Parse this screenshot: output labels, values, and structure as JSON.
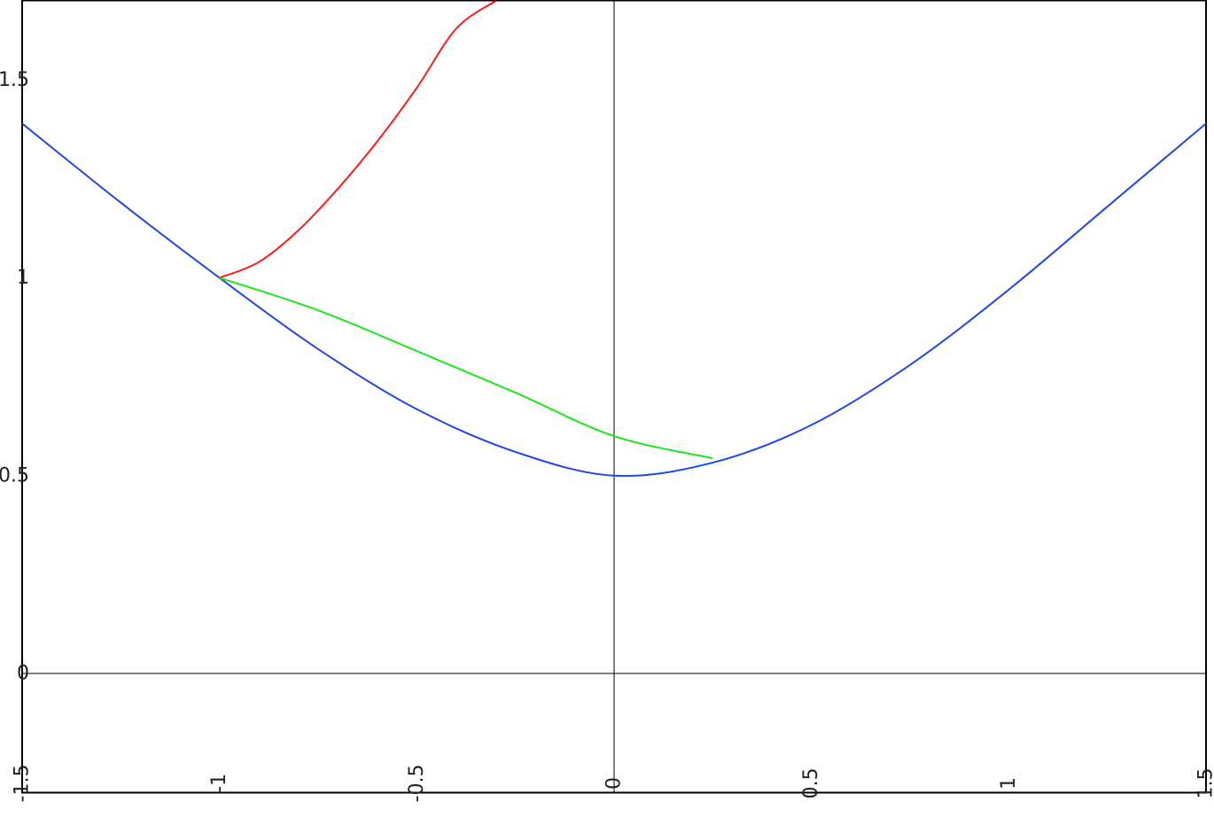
{
  "chart_data": {
    "type": "line",
    "title": "",
    "xlabel": "",
    "ylabel": "",
    "xlim": [
      -1.5,
      1.5
    ],
    "ylim": [
      -0.3,
      1.7
    ],
    "grid": false,
    "x_ticks": [
      {
        "value": -1.5,
        "label": "-1.5"
      },
      {
        "value": -1,
        "label": "-1"
      },
      {
        "value": -0.5,
        "label": "-0.5"
      },
      {
        "value": 0,
        "label": "0"
      },
      {
        "value": 0.5,
        "label": "0.5"
      },
      {
        "value": 1,
        "label": "1"
      },
      {
        "value": 1.5,
        "label": "1.5"
      }
    ],
    "y_ticks": [
      {
        "value": 0,
        "label": "0"
      },
      {
        "value": 0.5,
        "label": "0.5"
      },
      {
        "value": 1,
        "label": "1"
      },
      {
        "value": 1.5,
        "label": "1.5"
      }
    ],
    "series": [
      {
        "color": "#2148e6",
        "x": [
          -1.5,
          -1.25,
          -1.0,
          -0.75,
          -0.5,
          -0.25,
          0.0,
          0.25,
          0.5,
          0.75,
          1.0,
          1.25,
          1.5
        ],
        "y": [
          1.39,
          1.19,
          1.0,
          0.82,
          0.668,
          0.56,
          0.5,
          0.533,
          0.628,
          0.78,
          0.97,
          1.18,
          1.39
        ]
      },
      {
        "color": "#ff1a1a",
        "x": [
          -1.0,
          -0.9,
          -0.8,
          -0.7,
          -0.6,
          -0.5,
          -0.4,
          -0.3
        ],
        "y": [
          1.0,
          1.04,
          1.12,
          1.225,
          1.345,
          1.48,
          1.63,
          1.7
        ]
      },
      {
        "color": "#1ee61e",
        "x": [
          -1.0,
          -0.75,
          -0.5,
          -0.25,
          0.0,
          0.25
        ],
        "y": [
          1.0,
          0.918,
          0.815,
          0.71,
          0.6,
          0.544
        ]
      }
    ]
  }
}
